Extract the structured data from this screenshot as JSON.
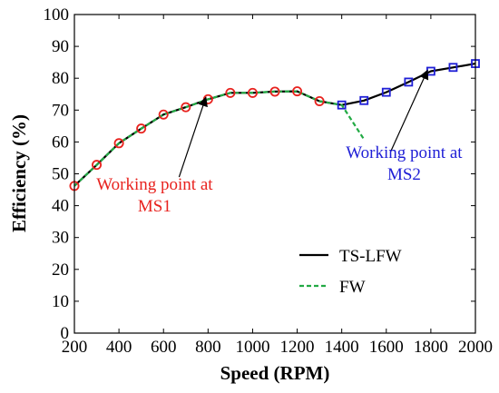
{
  "chart_data": {
    "type": "line",
    "title": "",
    "xlabel": "Speed (RPM)",
    "ylabel": "Efficiency (%)",
    "xlim": [
      200,
      2000
    ],
    "ylim": [
      0,
      100
    ],
    "xticks": [
      200,
      400,
      600,
      800,
      1000,
      1200,
      1400,
      1600,
      1800,
      2000
    ],
    "yticks": [
      0,
      10,
      20,
      30,
      40,
      50,
      60,
      70,
      80,
      90,
      100
    ],
    "grid": false,
    "legend_position": "bottom-right",
    "series": [
      {
        "name": "TS-LFW",
        "color": "#000000",
        "style": "solid",
        "x": [
          200,
          300,
          400,
          500,
          600,
          700,
          800,
          900,
          1000,
          1100,
          1200,
          1300,
          1400,
          1500,
          1600,
          1700,
          1800,
          1900,
          2000
        ],
        "y": [
          46.2,
          52.8,
          59.6,
          64.2,
          68.6,
          70.9,
          73.4,
          75.4,
          75.4,
          75.8,
          75.9,
          72.8,
          71.6,
          73.0,
          75.6,
          78.8,
          82.2,
          83.4,
          84.6
        ]
      },
      {
        "name": "FW",
        "color": "#22aa44",
        "style": "dashed",
        "x": [
          200,
          300,
          400,
          500,
          600,
          700,
          800,
          900,
          1000,
          1100,
          1200,
          1300,
          1400,
          1500
        ],
        "y": [
          46.2,
          52.8,
          59.6,
          64.2,
          68.6,
          70.9,
          73.4,
          75.4,
          75.4,
          75.8,
          75.9,
          72.8,
          71.6,
          60.8
        ]
      }
    ],
    "markers": [
      {
        "set": "MS1",
        "shape": "circle",
        "color": "#e8221e",
        "x": [
          200,
          300,
          400,
          500,
          600,
          700,
          800,
          900,
          1000,
          1100,
          1200,
          1300
        ],
        "y": [
          46.2,
          52.8,
          59.6,
          64.2,
          68.6,
          70.9,
          73.4,
          75.4,
          75.4,
          75.8,
          75.9,
          72.8
        ]
      },
      {
        "set": "MS2",
        "shape": "square",
        "color": "#1f1fd6",
        "x": [
          1400,
          1500,
          1600,
          1700,
          1800,
          1900,
          2000
        ],
        "y": [
          71.6,
          73.0,
          75.6,
          78.8,
          82.2,
          83.4,
          84.6
        ]
      }
    ],
    "annotations": [
      {
        "lines": [
          "Working point at",
          "MS1"
        ],
        "color": "#e8221e",
        "text_x": 560,
        "text_y": 45,
        "arrow_from": [
          670,
          49
        ],
        "arrow_to": [
          790,
          74
        ]
      },
      {
        "lines": [
          "Working point at",
          "MS2"
        ],
        "color": "#1f1fd6",
        "text_x": 1680,
        "text_y": 55,
        "arrow_from": [
          1620,
          57
        ],
        "arrow_to": [
          1785,
          82.5
        ]
      }
    ]
  }
}
